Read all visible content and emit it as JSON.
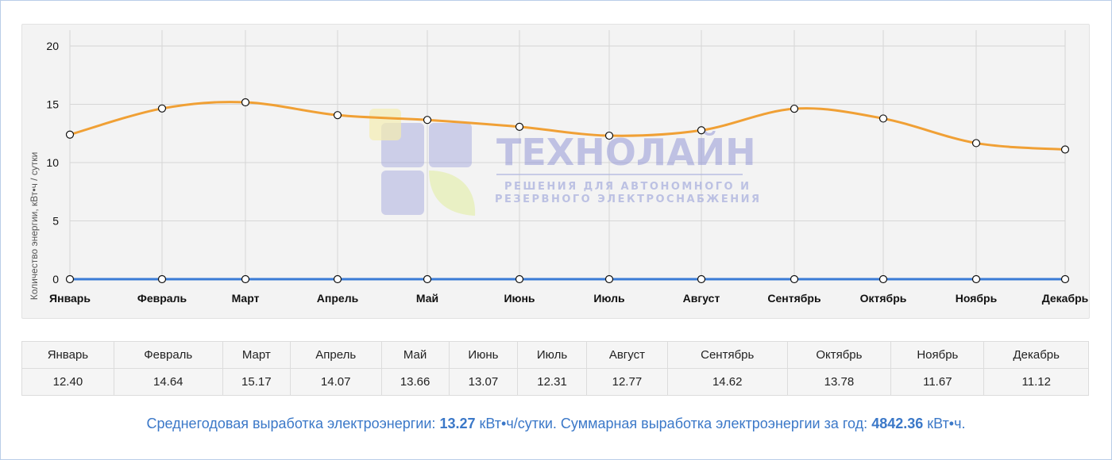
{
  "chart_data": {
    "type": "line",
    "categories": [
      "Январь",
      "Февраль",
      "Март",
      "Апрель",
      "Май",
      "Июнь",
      "Июль",
      "Август",
      "Сентябрь",
      "Октябрь",
      "Ноябрь",
      "Декабрь"
    ],
    "series": [
      {
        "values": [
          12.4,
          14.64,
          15.17,
          14.07,
          13.66,
          13.07,
          12.31,
          12.77,
          14.62,
          13.78,
          11.67,
          11.12
        ],
        "color": "#f0a035"
      },
      {
        "values": [
          0,
          0,
          0,
          0,
          0,
          0,
          0,
          0,
          0,
          0,
          0,
          0
        ],
        "color": "#3a7bd5"
      }
    ],
    "ylabel": "Количество энергии, кВт•ч / сутки",
    "ylim": [
      0,
      20
    ],
    "yticks": [
      0,
      5,
      10,
      15,
      20
    ],
    "grid": true,
    "legend": "none"
  },
  "watermark": {
    "brand": "ТЕХНОЛАЙН",
    "line1": "РЕШЕНИЯ ДЛЯ АВТОНОМНОГО И",
    "line2": "РЕЗЕРВНОГО ЭЛЕКТРОСНАБЖЕНИЯ"
  },
  "table": {
    "headers": [
      "Январь",
      "Февраль",
      "Март",
      "Апрель",
      "Май",
      "Июнь",
      "Июль",
      "Август",
      "Сентябрь",
      "Октябрь",
      "Ноябрь",
      "Декабрь"
    ],
    "values": [
      "12.40",
      "14.64",
      "15.17",
      "14.07",
      "13.66",
      "13.07",
      "12.31",
      "12.77",
      "14.62",
      "13.78",
      "11.67",
      "11.12"
    ]
  },
  "summary": {
    "avg_label": "Среднегодовая выработка электроэнергии:",
    "avg_value": "13.27",
    "avg_unit": "кВт•ч/сутки.",
    "total_label": "Суммарная выработка электроэнергии за год:",
    "total_value": "4842.36",
    "total_unit": "кВт•ч."
  }
}
